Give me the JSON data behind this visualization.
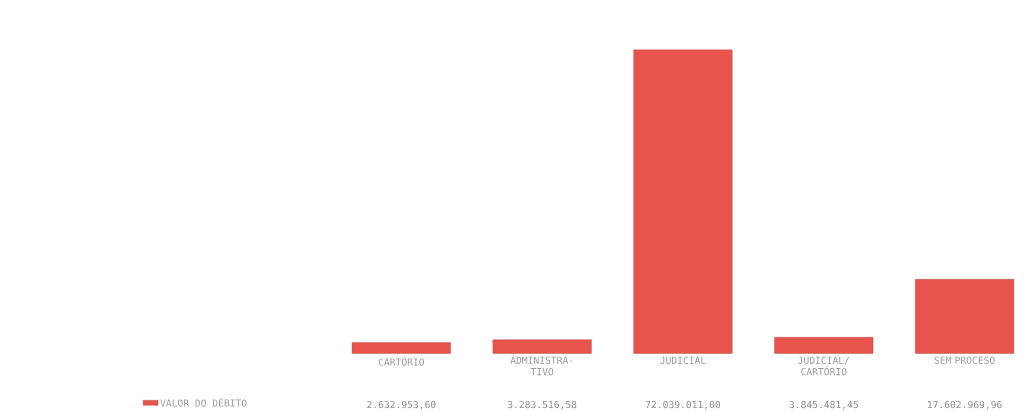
{
  "chart_data": {
    "type": "bar",
    "categories": [
      "CARTÓRIO",
      "ADMINISTRA-TIVO",
      "JUDICIAL",
      "JUDICIAL/ CARTÓRIO",
      "SEM PROCESO"
    ],
    "series": [
      {
        "name": "VALOR DO DÉBITO",
        "color": "#e8544c",
        "values": [
          2632953.6,
          3283516.58,
          72039011.0,
          3845481.45,
          17602969.96
        ],
        "value_labels": [
          "2.632.953,60",
          "3.283.516,58",
          "72.039.011,00",
          "3.845.481,45",
          "17.602.969,96"
        ]
      }
    ],
    "data_labels": true,
    "legend": "bottom left"
  }
}
